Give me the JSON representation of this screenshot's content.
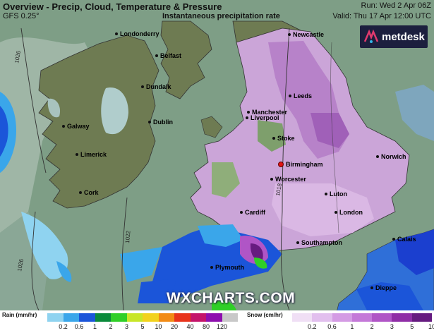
{
  "header": {
    "title": "Overview - Precip, Cloud, Temperature & Pressure",
    "model": "GFS 0.25°",
    "field": "Instantaneous precipitation rate",
    "run": "Run: Wed 2 Apr 06Z",
    "valid": "Valid: Thu 17 Apr 12:00 UTC"
  },
  "brand": {
    "name": "metdesk",
    "watermark": "WXCHARTS.COM"
  },
  "cities": [
    {
      "name": "Londonderry",
      "marker": "dot"
    },
    {
      "name": "Newcastle",
      "marker": "dot"
    },
    {
      "name": "Belfast",
      "marker": "dot"
    },
    {
      "name": "Dundalk",
      "marker": "dot"
    },
    {
      "name": "Leeds",
      "marker": "dot"
    },
    {
      "name": "Manchester",
      "marker": "dot"
    },
    {
      "name": "Liverpool",
      "marker": "dot"
    },
    {
      "name": "Galway",
      "marker": "dot"
    },
    {
      "name": "Dublin",
      "marker": "dot"
    },
    {
      "name": "Stoke",
      "marker": "dot"
    },
    {
      "name": "Norwich",
      "marker": "dot"
    },
    {
      "name": "Limerick",
      "marker": "dot"
    },
    {
      "name": "Birmingham",
      "marker": "red"
    },
    {
      "name": "Worcester",
      "marker": "dot"
    },
    {
      "name": "Luton",
      "marker": "dot"
    },
    {
      "name": "Cork",
      "marker": "dot"
    },
    {
      "name": "Cardiff",
      "marker": "dot"
    },
    {
      "name": "London",
      "marker": "dot"
    },
    {
      "name": "Southampton",
      "marker": "dot"
    },
    {
      "name": "Calais",
      "marker": "dot"
    },
    {
      "name": "Plymouth",
      "marker": "dot"
    },
    {
      "name": "Dieppe",
      "marker": "dot"
    }
  ],
  "isobars": [
    "1026",
    "1026",
    "1022",
    "1018"
  ],
  "legend": {
    "rain": {
      "title": "Rain (mm/hr)",
      "ticks": [
        "0.2",
        "0.6",
        "1",
        "2",
        "3",
        "5",
        "10",
        "20",
        "40",
        "80",
        "120"
      ],
      "colors": [
        "#8fd3f0",
        "#3aa6ea",
        "#1b55d9",
        "#0a8a3a",
        "#2fcf27",
        "#c8e628",
        "#f2d21d",
        "#f28b15",
        "#e8331b",
        "#c4146a",
        "#8e0fae",
        "#c8c8c8"
      ]
    },
    "snow": {
      "title": "Snow (cm/hr)",
      "ticks": [
        "0.2",
        "0.6",
        "1",
        "2",
        "3",
        "5",
        "10"
      ],
      "colors": [
        "#f0dff5",
        "#e2bfee",
        "#d49be4",
        "#c479d8",
        "#b055c6",
        "#8f2ea6",
        "#661b80"
      ]
    }
  }
}
